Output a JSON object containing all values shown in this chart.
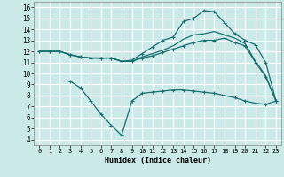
{
  "background_color": "#cce9e9",
  "grid_color": "#ffffff",
  "line_color": "#1a6e6e",
  "xlabel": "Humidex (Indice chaleur)",
  "xlim": [
    -0.5,
    23.5
  ],
  "ylim": [
    3.5,
    16.5
  ],
  "xticks": [
    0,
    1,
    2,
    3,
    4,
    5,
    6,
    7,
    8,
    9,
    10,
    11,
    12,
    13,
    14,
    15,
    16,
    17,
    18,
    19,
    20,
    21,
    22,
    23
  ],
  "yticks": [
    4,
    5,
    6,
    7,
    8,
    9,
    10,
    11,
    12,
    13,
    14,
    15,
    16
  ],
  "line1_x": [
    0,
    1,
    2,
    3,
    4,
    5,
    6,
    7,
    8,
    9,
    10,
    11,
    12,
    13,
    14,
    15,
    16,
    17,
    18,
    19,
    20,
    21,
    22,
    23
  ],
  "line1_y": [
    12.0,
    12.0,
    12.0,
    11.7,
    11.5,
    11.4,
    11.4,
    11.4,
    11.1,
    11.1,
    11.4,
    11.6,
    11.9,
    12.2,
    12.5,
    12.8,
    13.0,
    13.0,
    13.2,
    12.8,
    12.5,
    11.0,
    9.7,
    7.5
  ],
  "line2_x": [
    0,
    1,
    2,
    3,
    4,
    5,
    6,
    7,
    8,
    9,
    10,
    11,
    12,
    13,
    14,
    15,
    16,
    17,
    18,
    19,
    20,
    21,
    22,
    23
  ],
  "line2_y": [
    12.0,
    12.0,
    12.0,
    11.7,
    11.5,
    11.4,
    11.4,
    11.4,
    11.1,
    11.1,
    11.5,
    11.8,
    12.1,
    12.5,
    13.1,
    13.5,
    13.6,
    13.8,
    13.5,
    13.2,
    12.7,
    11.1,
    9.8,
    7.5
  ],
  "line3_x": [
    0,
    1,
    2,
    3,
    4,
    5,
    6,
    7,
    8,
    9,
    10,
    11,
    12,
    13,
    14,
    15,
    16,
    17,
    18,
    19,
    20,
    21,
    22,
    23
  ],
  "line3_y": [
    12.0,
    12.0,
    12.0,
    11.7,
    11.5,
    11.4,
    11.4,
    11.4,
    11.1,
    11.2,
    11.8,
    12.4,
    13.0,
    13.3,
    14.7,
    15.0,
    15.7,
    15.6,
    14.6,
    13.6,
    13.0,
    12.6,
    11.0,
    7.5
  ],
  "line4_x": [
    3,
    4,
    5,
    6,
    7,
    8,
    9,
    10,
    11,
    12,
    13,
    14,
    15,
    16,
    17,
    18,
    19,
    20,
    21,
    22,
    23
  ],
  "line4_y": [
    9.3,
    8.7,
    7.5,
    6.3,
    5.3,
    4.4,
    7.5,
    8.2,
    8.3,
    8.4,
    8.5,
    8.5,
    8.4,
    8.3,
    8.2,
    8.0,
    7.8,
    7.5,
    7.3,
    7.2,
    7.5
  ]
}
